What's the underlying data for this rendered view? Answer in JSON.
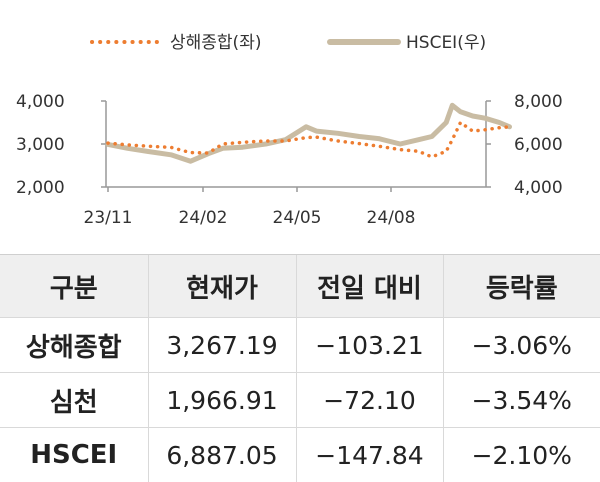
{
  "chart_data": {
    "type": "line",
    "x_ticks": [
      "23/11",
      "24/02",
      "24/05",
      "24/08"
    ],
    "y_left": {
      "range": [
        2000,
        4000
      ],
      "ticks": [
        "2,000",
        "3,000",
        "4,000"
      ]
    },
    "y_right": {
      "range": [
        4000,
        8000
      ],
      "ticks": [
        "4,000",
        "6,000",
        "8,000"
      ]
    },
    "grid": false,
    "legend_position": "top",
    "series": [
      {
        "name": "상해종합(좌)",
        "axis": "left",
        "style": "dotted",
        "color": "#ed7d31",
        "x": [
          "2023-11-01",
          "2023-11-20",
          "2023-12-10",
          "2024-01-01",
          "2024-01-20",
          "2024-02-06",
          "2024-02-20",
          "2024-03-10",
          "2024-04-01",
          "2024-04-20",
          "2024-05-10",
          "2024-05-20",
          "2024-06-10",
          "2024-07-01",
          "2024-07-20",
          "2024-08-10",
          "2024-08-28",
          "2024-09-10",
          "2024-09-24",
          "2024-09-30",
          "2024-10-08",
          "2024-10-20",
          "2024-11-01",
          "2024-11-15",
          "2024-11-25"
        ],
        "values": [
          3020,
          2980,
          2950,
          2920,
          2800,
          2790,
          3000,
          3040,
          3070,
          3070,
          3150,
          3160,
          3070,
          3010,
          2950,
          2870,
          2830,
          2700,
          2830,
          3100,
          3500,
          3300,
          3330,
          3380,
          3400
        ]
      },
      {
        "name": "HSCEI(우)",
        "axis": "right",
        "style": "solid",
        "color": "#c9bca3",
        "x": [
          "2023-11-01",
          "2023-11-20",
          "2023-12-10",
          "2024-01-01",
          "2024-01-20",
          "2024-02-06",
          "2024-02-20",
          "2024-03-10",
          "2024-04-01",
          "2024-04-20",
          "2024-05-10",
          "2024-05-20",
          "2024-06-10",
          "2024-07-01",
          "2024-07-20",
          "2024-08-10",
          "2024-08-28",
          "2024-09-10",
          "2024-09-24",
          "2024-09-30",
          "2024-10-08",
          "2024-10-20",
          "2024-11-01",
          "2024-11-15",
          "2024-11-25"
        ],
        "values": [
          5980,
          5800,
          5650,
          5500,
          5200,
          5550,
          5800,
          5850,
          6000,
          6200,
          6800,
          6600,
          6500,
          6350,
          6250,
          6000,
          6200,
          6350,
          7000,
          7800,
          7500,
          7300,
          7200,
          7000,
          6800
        ]
      }
    ]
  },
  "table": {
    "headers": [
      "구분",
      "현재가",
      "전일 대비",
      "등락률"
    ],
    "rows": [
      [
        "상해종합",
        "3,267.19",
        "−103.21",
        "−3.06%"
      ],
      [
        "심천",
        "1,966.91",
        "−72.10",
        "−3.54%"
      ],
      [
        "HSCEI",
        "6,887.05",
        "−147.84",
        "−2.10%"
      ]
    ]
  }
}
